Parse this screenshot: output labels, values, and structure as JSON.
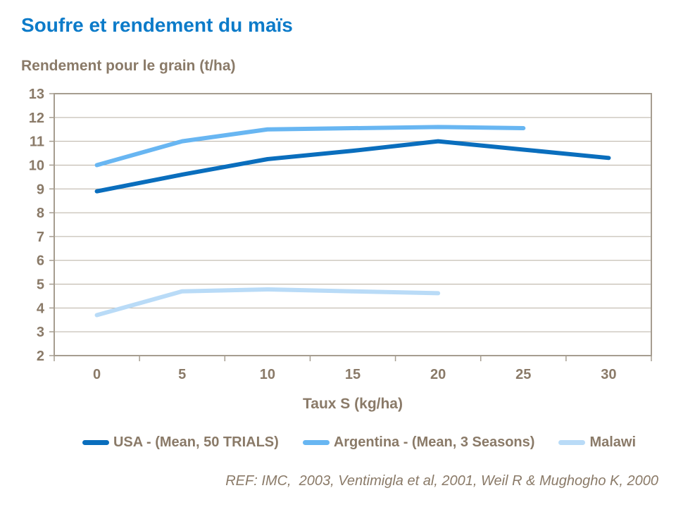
{
  "title": "Soufre et rendement du maïs",
  "subtitle": "Rendement pour le grain (t/ha)",
  "footer_ref": "REF: IMC,  2003, Ventimigla et al, 2001, Weil R & Mughogho K, 2000",
  "colors": {
    "title": "#0C7BC9",
    "text": "#8A7A68",
    "grid": "#B9B0A3",
    "border": "#A69D90"
  },
  "chart_data": {
    "type": "line",
    "title": "Soufre et rendement du maïs",
    "xlabel": "Taux S (kg/ha)",
    "ylabel": "Rendement pour le grain (t/ha)",
    "x": [
      0,
      5,
      10,
      15,
      20,
      25,
      30
    ],
    "ylim": [
      2,
      13
    ],
    "yticks": [
      2,
      3,
      4,
      5,
      6,
      7,
      8,
      9,
      10,
      11,
      12,
      13
    ],
    "grid": true,
    "legend_position": "bottom",
    "series": [
      {
        "name": "USA - (Mean, 50 TRIALS)",
        "color": "#0A6EBD",
        "x": [
          0,
          5,
          10,
          15,
          20,
          25,
          30
        ],
        "values": [
          8.9,
          9.6,
          10.25,
          10.6,
          11.0,
          10.65,
          10.3
        ]
      },
      {
        "name": "Argentina - (Mean, 3 Seasons)",
        "color": "#68B6F2",
        "x": [
          0,
          5,
          10,
          15,
          20,
          25
        ],
        "values": [
          10.0,
          11.0,
          11.5,
          11.55,
          11.6,
          11.55
        ]
      },
      {
        "name": "Malawi",
        "color": "#B9DBF7",
        "x": [
          0,
          5,
          10,
          15,
          20
        ],
        "values": [
          3.7,
          4.7,
          4.78,
          4.7,
          4.62
        ]
      }
    ]
  }
}
